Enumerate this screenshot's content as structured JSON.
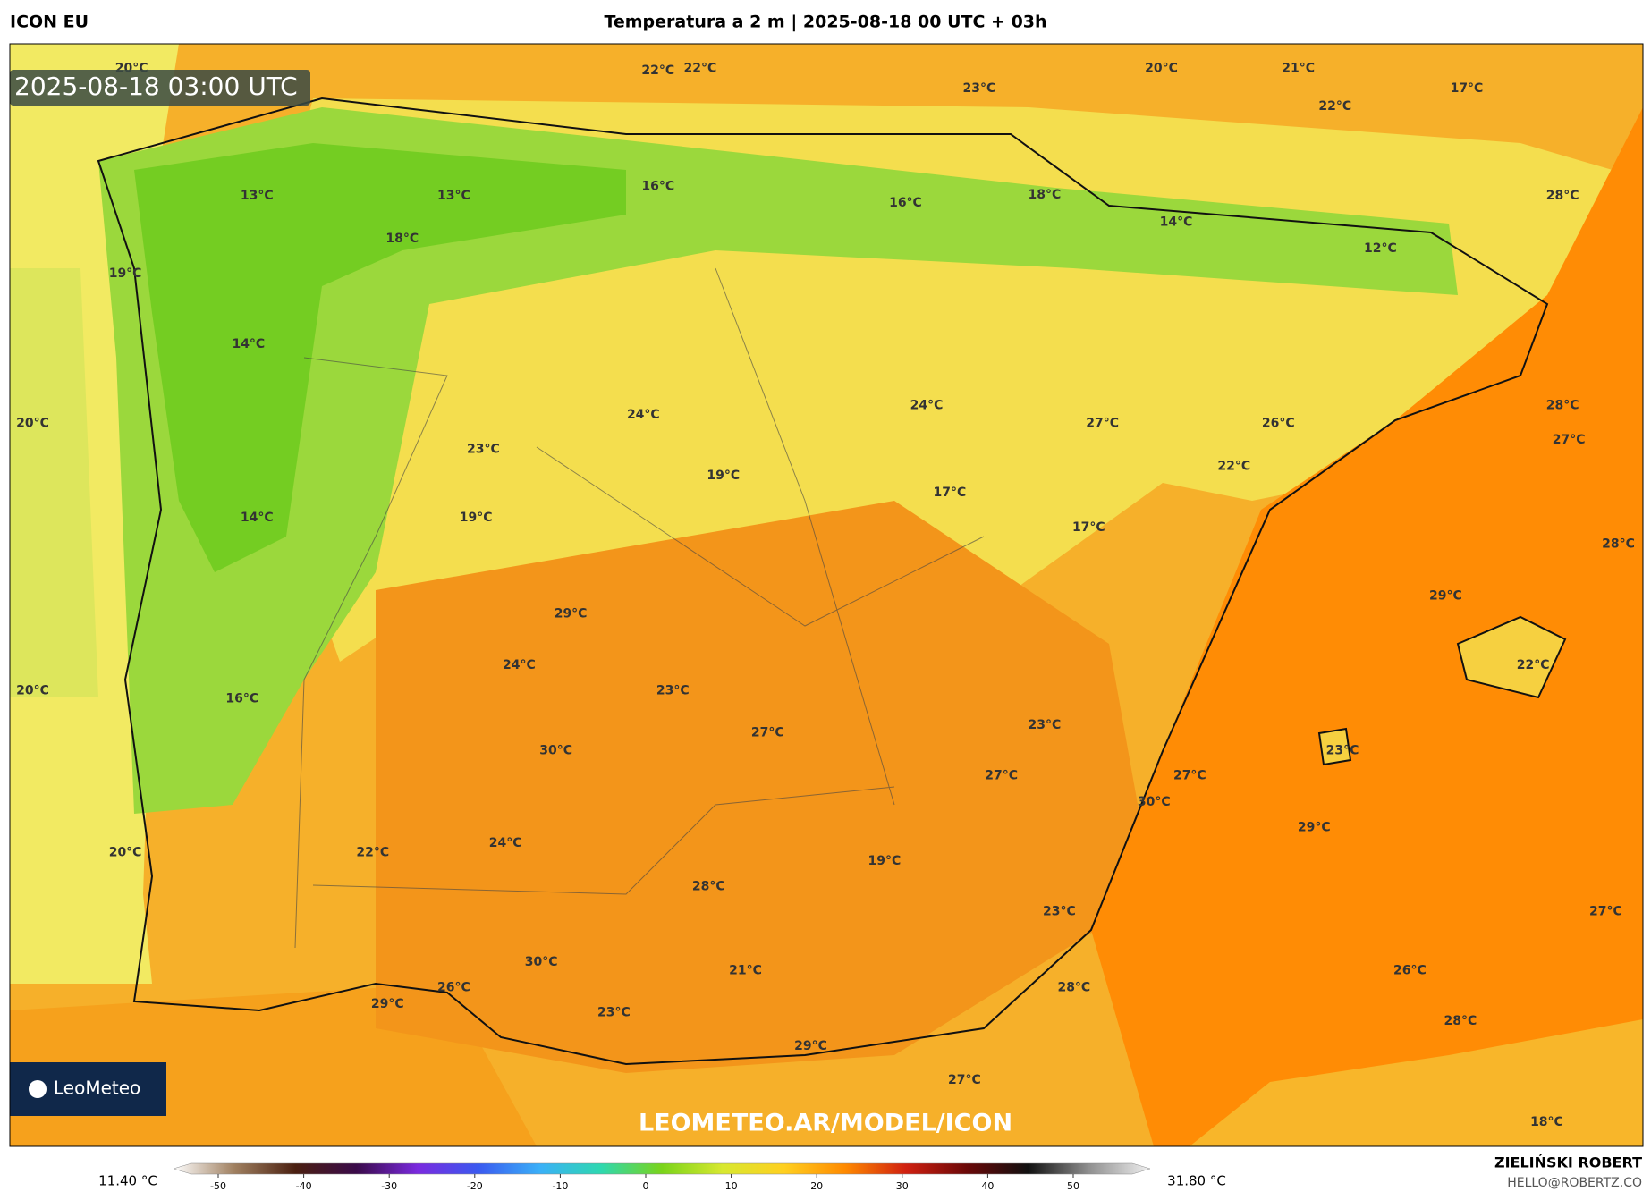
{
  "header": {
    "model": "ICON EU",
    "title": "Temperatura a 2 m | 2025-08-18 00 UTC + 03h"
  },
  "map": {
    "timestamp": "2025-08-18 03:00 UTC",
    "watermark": "LEOMETEO.AR/MODEL/ICON",
    "logo": "LeoMeteo",
    "labels": [
      "20°C",
      "22°C",
      "22°C",
      "23°C",
      "20°C",
      "21°C",
      "22°C",
      "17°C",
      "13°C",
      "13°C",
      "16°C",
      "16°C",
      "18°C",
      "14°C",
      "12°C",
      "28°C",
      "18°C",
      "19°C",
      "14°C",
      "24°C",
      "27°C",
      "26°C",
      "28°C",
      "27°C",
      "20°C",
      "24°C",
      "23°C",
      "22°C",
      "19°C",
      "17°C",
      "14°C",
      "19°C",
      "17°C",
      "28°C",
      "29°C",
      "29°C",
      "24°C",
      "22°C",
      "20°C",
      "23°C",
      "16°C",
      "23°C",
      "27°C",
      "23°C",
      "30°C",
      "27°C",
      "27°C",
      "30°C",
      "29°C",
      "24°C",
      "20°C",
      "22°C",
      "19°C",
      "28°C",
      "23°C",
      "27°C",
      "30°C",
      "21°C",
      "26°C",
      "26°C",
      "28°C",
      "29°C",
      "23°C",
      "28°C",
      "29°C",
      "27°C",
      "18°C"
    ]
  },
  "colorbar": {
    "min_label": "11.40 °C",
    "max_label": "31.80 °C",
    "ticks": [
      -50,
      -40,
      -30,
      -20,
      -10,
      0,
      10,
      20,
      30,
      40,
      50
    ],
    "colors": [
      "#ffffff",
      "#a08060",
      "#4a1f10",
      "#3a0a4a",
      "#7a2adf",
      "#3a5af0",
      "#3ab0f8",
      "#2ed8b0",
      "#7ad41a",
      "#d8e830",
      "#ffd020",
      "#ff8a00",
      "#d02010",
      "#6a0808",
      "#101010",
      "#909090",
      "#f0f0f0"
    ]
  },
  "footer": {
    "author": "ZIELIŃSKI ROBERT",
    "email": "HELLO@ROBERTZ.CO"
  }
}
